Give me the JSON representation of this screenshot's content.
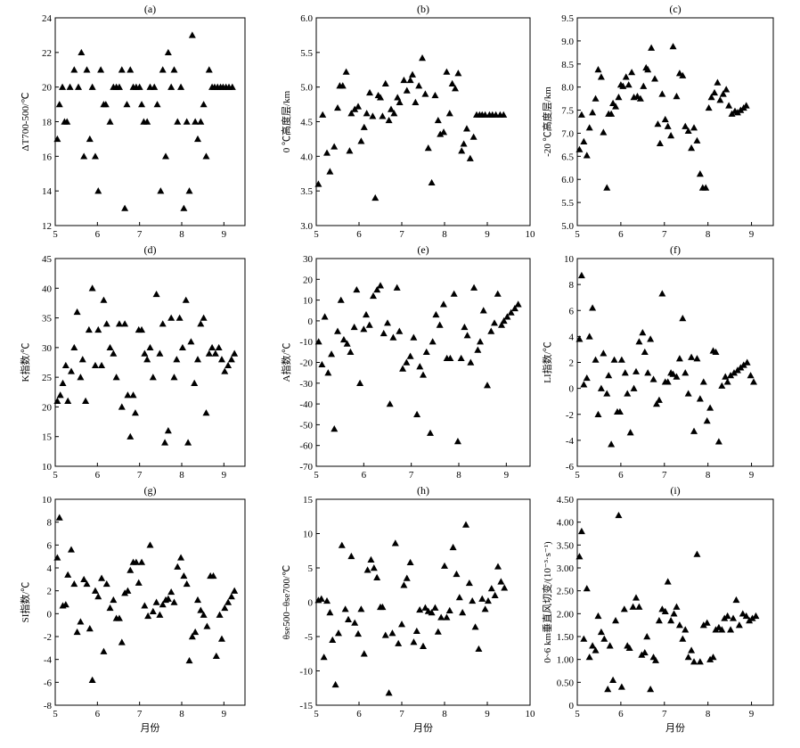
{
  "chart_data": [
    {
      "type": "scatter",
      "title": "(a)",
      "ylabel": "ΔT700-500/℃",
      "xlabel": "",
      "xlim": [
        5,
        9.5
      ],
      "ylim": [
        12,
        24
      ],
      "xticks": [
        5,
        6,
        7,
        8,
        9
      ],
      "yticks": [
        12,
        14,
        16,
        18,
        20,
        22,
        24
      ],
      "x": [
        5.05,
        5.1,
        5.17,
        5.22,
        5.28,
        5.35,
        5.45,
        5.55,
        5.62,
        5.68,
        5.75,
        5.82,
        5.88,
        5.95,
        6.02,
        6.08,
        6.15,
        6.2,
        6.3,
        6.38,
        6.45,
        6.52,
        6.58,
        6.65,
        6.7,
        6.78,
        6.85,
        6.92,
        7.0,
        7.05,
        7.1,
        7.18,
        7.25,
        7.35,
        7.42,
        7.5,
        7.55,
        7.62,
        7.68,
        7.75,
        7.82,
        7.9,
        7.98,
        8.05,
        8.12,
        8.18,
        8.25,
        8.32,
        8.38,
        8.45,
        8.52,
        8.58,
        8.65,
        8.72,
        8.78,
        8.85,
        8.92,
        8.98,
        9.05,
        9.12,
        9.2
      ],
      "y": [
        17,
        19,
        20,
        18,
        18,
        20,
        21,
        20,
        22,
        16,
        21,
        17,
        20,
        16,
        14,
        21,
        19,
        19,
        18,
        20,
        20,
        20,
        21,
        13,
        19,
        21,
        20,
        20,
        20,
        19,
        18,
        18,
        20,
        20,
        19,
        14,
        21,
        16,
        22,
        20,
        21,
        18,
        20,
        13,
        18,
        14,
        23,
        18,
        17,
        18,
        19,
        16,
        21,
        20,
        20,
        20,
        20,
        20,
        20,
        20,
        20
      ]
    },
    {
      "type": "scatter",
      "title": "(b)",
      "ylabel": "0 ℃高度层/km",
      "xlabel": "",
      "xlim": [
        5,
        10
      ],
      "ylim": [
        3.0,
        6.0
      ],
      "xticks": [
        5,
        6,
        7,
        8,
        9,
        10
      ],
      "yticks": [
        3.0,
        3.5,
        4.0,
        4.5,
        5.0,
        5.5,
        6.0
      ],
      "x": [
        5.05,
        5.15,
        5.25,
        5.32,
        5.42,
        5.5,
        5.55,
        5.62,
        5.7,
        5.78,
        5.82,
        5.9,
        5.98,
        6.05,
        6.12,
        6.18,
        6.25,
        6.32,
        6.38,
        6.45,
        6.5,
        6.55,
        6.62,
        6.7,
        6.75,
        6.82,
        6.9,
        6.95,
        7.05,
        7.12,
        7.2,
        7.25,
        7.32,
        7.4,
        7.48,
        7.55,
        7.62,
        7.7,
        7.78,
        7.85,
        7.9,
        7.98,
        8.05,
        8.12,
        8.18,
        8.25,
        8.32,
        8.4,
        8.45,
        8.52,
        8.6,
        8.68,
        8.75,
        8.82,
        8.88,
        8.95,
        9.05,
        9.12,
        9.2,
        9.3,
        9.38
      ],
      "y": [
        3.6,
        4.6,
        4.05,
        3.78,
        4.14,
        4.7,
        5.02,
        5.02,
        5.22,
        4.08,
        4.62,
        4.68,
        4.72,
        4.22,
        4.42,
        4.62,
        4.92,
        4.58,
        3.4,
        4.88,
        4.85,
        4.58,
        5.05,
        4.52,
        4.68,
        4.62,
        4.85,
        4.78,
        5.1,
        4.95,
        5.1,
        5.18,
        4.78,
        5.02,
        5.42,
        4.9,
        4.12,
        3.62,
        4.88,
        4.52,
        4.32,
        4.35,
        5.22,
        4.62,
        5.05,
        4.98,
        5.2,
        4.08,
        4.18,
        4.4,
        3.97,
        4.28,
        4.6,
        4.6,
        4.6,
        4.6,
        4.6,
        4.6,
        4.6,
        4.6,
        4.6
      ]
    },
    {
      "type": "scatter",
      "title": "(c)",
      "ylabel": "-20 ℃高度层/km",
      "xlabel": "",
      "xlim": [
        5,
        9.5
      ],
      "ylim": [
        5.0,
        9.5
      ],
      "xticks": [
        5,
        6,
        7,
        8,
        9
      ],
      "yticks": [
        5.0,
        5.5,
        6.0,
        6.5,
        7.0,
        7.5,
        8.0,
        8.5,
        9.0,
        9.5
      ],
      "x": [
        5.05,
        5.1,
        5.15,
        5.22,
        5.28,
        5.35,
        5.42,
        5.48,
        5.55,
        5.6,
        5.68,
        5.72,
        5.78,
        5.82,
        5.88,
        5.95,
        6.0,
        6.05,
        6.12,
        6.18,
        6.25,
        6.3,
        6.38,
        6.45,
        6.52,
        6.58,
        6.62,
        6.7,
        6.78,
        6.85,
        6.9,
        6.95,
        7.02,
        7.08,
        7.15,
        7.2,
        7.28,
        7.35,
        7.42,
        7.48,
        7.55,
        7.62,
        7.68,
        7.75,
        7.82,
        7.88,
        7.95,
        8.02,
        8.08,
        8.15,
        8.22,
        8.28,
        8.35,
        8.42,
        8.48,
        8.55,
        8.62,
        8.68,
        8.75,
        8.82,
        8.88
      ],
      "y": [
        6.65,
        7.4,
        6.82,
        6.52,
        7.12,
        7.45,
        7.75,
        8.38,
        8.22,
        7.02,
        5.82,
        7.42,
        7.42,
        7.65,
        7.58,
        7.78,
        8.05,
        8.02,
        8.22,
        8.05,
        8.32,
        7.78,
        7.8,
        7.75,
        8.02,
        8.42,
        8.38,
        8.85,
        8.18,
        7.2,
        6.78,
        7.85,
        7.3,
        7.15,
        6.95,
        8.88,
        7.8,
        8.3,
        8.25,
        7.15,
        7.05,
        6.68,
        7.12,
        6.84,
        6.12,
        5.82,
        5.82,
        7.55,
        7.78,
        7.88,
        8.1,
        7.72,
        7.85,
        7.95,
        7.6,
        7.42,
        7.48,
        7.45,
        7.5,
        7.55,
        7.6
      ]
    },
    {
      "type": "scatter",
      "title": "(d)",
      "ylabel": "K指数/℃",
      "xlabel": "",
      "xlim": [
        5,
        9.5
      ],
      "ylim": [
        10,
        45
      ],
      "xticks": [
        5,
        6,
        7,
        8,
        9
      ],
      "yticks": [
        10,
        15,
        20,
        25,
        30,
        35,
        40,
        45
      ],
      "x": [
        5.05,
        5.12,
        5.18,
        5.25,
        5.3,
        5.38,
        5.45,
        5.52,
        5.6,
        5.65,
        5.72,
        5.8,
        5.88,
        5.95,
        6.02,
        6.1,
        6.15,
        6.22,
        6.3,
        6.38,
        6.45,
        6.52,
        6.58,
        6.65,
        6.72,
        6.78,
        6.85,
        6.9,
        6.98,
        7.05,
        7.12,
        7.18,
        7.25,
        7.32,
        7.4,
        7.48,
        7.55,
        7.6,
        7.68,
        7.75,
        7.82,
        7.88,
        7.95,
        8.02,
        8.1,
        8.15,
        8.22,
        8.3,
        8.38,
        8.45,
        8.52,
        8.58,
        8.65,
        8.72,
        8.8,
        8.88,
        8.95,
        9.02,
        9.1,
        9.18,
        9.25
      ],
      "y": [
        21,
        22,
        24,
        27,
        21,
        26,
        30,
        36,
        25,
        28,
        21,
        33,
        40,
        27,
        33,
        27,
        38,
        34,
        30,
        29,
        25,
        34,
        20,
        34,
        22,
        15,
        22,
        19,
        33,
        33,
        29,
        28,
        30,
        25,
        39,
        29,
        34,
        14,
        16,
        35,
        25,
        28,
        35,
        30,
        38,
        14,
        31,
        24,
        28,
        34,
        35,
        19,
        29,
        30,
        29,
        30,
        28,
        26,
        27,
        28,
        29
      ]
    },
    {
      "type": "scatter",
      "title": "(e)",
      "ylabel": "A指数/℃",
      "xlabel": "",
      "xlim": [
        5,
        9.5
      ],
      "ylim": [
        -70,
        30
      ],
      "xticks": [
        5,
        6,
        7,
        8,
        9
      ],
      "yticks": [
        -70,
        -60,
        -50,
        -40,
        -30,
        -20,
        -10,
        0,
        10,
        20,
        30
      ],
      "x": [
        5.05,
        5.12,
        5.18,
        5.25,
        5.32,
        5.38,
        5.45,
        5.52,
        5.58,
        5.65,
        5.72,
        5.8,
        5.85,
        5.92,
        6.0,
        6.05,
        6.12,
        6.2,
        6.28,
        6.35,
        6.42,
        6.5,
        6.55,
        6.62,
        6.7,
        6.75,
        6.82,
        6.9,
        6.98,
        7.05,
        7.12,
        7.18,
        7.25,
        7.32,
        7.4,
        7.45,
        7.52,
        7.6,
        7.68,
        7.75,
        7.82,
        7.9,
        7.98,
        8.05,
        8.12,
        8.18,
        8.25,
        8.32,
        8.4,
        8.45,
        8.52,
        8.6,
        8.68,
        8.75,
        8.82,
        8.9,
        8.95,
        9.02,
        9.1,
        9.18,
        9.25
      ],
      "y": [
        -10,
        -21,
        2,
        -25,
        -16,
        -52,
        -5,
        10,
        -9,
        -11,
        -15,
        -3,
        15,
        -30,
        -4,
        3,
        -2,
        12,
        15,
        17,
        -6,
        -1,
        -40,
        -8,
        16,
        -5,
        -23,
        -20,
        -17,
        -8,
        -45,
        -22,
        -26,
        -15,
        -54,
        -10,
        3,
        -2,
        8,
        -18,
        -18,
        13,
        -58,
        -18,
        -3,
        -7,
        -20,
        16,
        -14,
        -10,
        5,
        -31,
        -5,
        -1,
        13,
        -2,
        0,
        2,
        4,
        6,
        8
      ]
    },
    {
      "type": "scatter",
      "title": "(f)",
      "ylabel": "LI指数/℃",
      "xlabel": "",
      "xlim": [
        5,
        9.5
      ],
      "ylim": [
        -6,
        10
      ],
      "xticks": [
        5,
        6,
        7,
        8,
        9
      ],
      "yticks": [
        -6,
        -4,
        -2,
        0,
        2,
        4,
        6,
        8,
        10
      ],
      "x": [
        5.05,
        5.1,
        5.15,
        5.22,
        5.28,
        5.35,
        5.42,
        5.48,
        5.55,
        5.6,
        5.68,
        5.72,
        5.78,
        5.85,
        5.92,
        5.98,
        6.02,
        6.1,
        6.15,
        6.22,
        6.3,
        6.35,
        6.42,
        6.5,
        6.55,
        6.62,
        6.68,
        6.75,
        6.82,
        6.88,
        6.95,
        7.02,
        7.08,
        7.15,
        7.2,
        7.28,
        7.35,
        7.42,
        7.48,
        7.55,
        7.62,
        7.68,
        7.75,
        7.82,
        7.9,
        7.98,
        8.05,
        8.12,
        8.18,
        8.25,
        8.32,
        8.4,
        8.45,
        8.52,
        8.6,
        8.68,
        8.75,
        8.82,
        8.9,
        8.98,
        9.05
      ],
      "y": [
        3.8,
        8.7,
        0.3,
        0.8,
        4.0,
        6.2,
        2.2,
        -2.0,
        0.0,
        2.7,
        -0.4,
        1.0,
        -4.3,
        2.2,
        -1.8,
        -1.8,
        2.2,
        1.2,
        -0.4,
        -3.4,
        0.0,
        1.3,
        3.6,
        4.3,
        2.8,
        1.2,
        3.8,
        0.7,
        -1.2,
        -0.9,
        7.3,
        0.5,
        0.5,
        1.2,
        1.1,
        0.9,
        2.3,
        5.4,
        1.2,
        -0.4,
        2.4,
        -3.3,
        2.3,
        -0.8,
        0.5,
        -2.5,
        -1.5,
        2.9,
        2.8,
        -4.1,
        0.2,
        0.9,
        0.5,
        1.0,
        1.2,
        1.4,
        1.6,
        1.8,
        2.0,
        1.0,
        0.5
      ]
    },
    {
      "type": "scatter",
      "title": "(g)",
      "ylabel": "SI指数/℃",
      "xlabel": "月份",
      "xlim": [
        5,
        9.5
      ],
      "ylim": [
        -8,
        10
      ],
      "xticks": [
        5,
        6,
        7,
        8,
        9
      ],
      "yticks": [
        -8,
        -6,
        -4,
        -2,
        0,
        2,
        4,
        6,
        8,
        10
      ],
      "x": [
        5.05,
        5.1,
        5.18,
        5.25,
        5.3,
        5.38,
        5.45,
        5.52,
        5.6,
        5.68,
        5.75,
        5.82,
        5.88,
        5.95,
        6.02,
        6.1,
        6.15,
        6.22,
        6.3,
        6.38,
        6.45,
        6.52,
        6.58,
        6.65,
        6.72,
        6.78,
        6.85,
        6.92,
        6.98,
        7.05,
        7.12,
        7.2,
        7.25,
        7.32,
        7.4,
        7.48,
        7.55,
        7.62,
        7.68,
        7.75,
        7.82,
        7.9,
        7.98,
        8.05,
        8.12,
        8.18,
        8.25,
        8.32,
        8.38,
        8.45,
        8.52,
        8.6,
        8.68,
        8.75,
        8.82,
        8.9,
        8.95,
        9.02,
        9.1,
        9.18,
        9.25
      ],
      "y": [
        4.9,
        8.4,
        0.7,
        0.8,
        3.4,
        5.6,
        2.6,
        -1.6,
        -0.7,
        3.0,
        2.6,
        -1.3,
        -5.8,
        2.0,
        1.5,
        3.1,
        -3.3,
        2.6,
        0.5,
        1.2,
        -0.4,
        -0.4,
        -2.5,
        1.8,
        2.0,
        3.8,
        4.5,
        4.5,
        2.7,
        4.5,
        0.7,
        -0.2,
        6.0,
        0.2,
        1.0,
        -0.1,
        0.8,
        1.2,
        1.3,
        1.9,
        1.0,
        4.1,
        4.9,
        3.3,
        2.6,
        -4.1,
        -2.0,
        -1.6,
        1.2,
        0.3,
        -0.1,
        -1.1,
        3.3,
        3.3,
        -3.7,
        -0.1,
        -2.2,
        0.5,
        1.0,
        1.5,
        2.0
      ]
    },
    {
      "type": "scatter",
      "title": "(h)",
      "ylabel": "θse500−θse700/℃",
      "xlabel": "月份",
      "xlim": [
        5,
        10
      ],
      "ylim": [
        -15,
        15
      ],
      "xticks": [
        5,
        6,
        7,
        8,
        9,
        10
      ],
      "yticks": [
        -15,
        -10,
        -5,
        0,
        5,
        10,
        15
      ],
      "x": [
        5.05,
        5.12,
        5.18,
        5.25,
        5.32,
        5.38,
        5.45,
        5.52,
        5.6,
        5.68,
        5.75,
        5.82,
        5.9,
        5.98,
        6.05,
        6.12,
        6.2,
        6.28,
        6.35,
        6.42,
        6.5,
        6.55,
        6.62,
        6.7,
        6.78,
        6.85,
        6.92,
        7.0,
        7.05,
        7.12,
        7.2,
        7.28,
        7.35,
        7.42,
        7.5,
        7.55,
        7.62,
        7.7,
        7.78,
        7.85,
        7.92,
        8.0,
        8.05,
        8.12,
        8.2,
        8.28,
        8.35,
        8.42,
        8.5,
        8.58,
        8.65,
        8.72,
        8.8,
        8.88,
        8.95,
        9.02,
        9.1,
        9.18,
        9.25,
        9.32,
        9.4
      ],
      "y": [
        0.3,
        0.5,
        -8.0,
        0.2,
        -1.5,
        -5.5,
        -12.0,
        -4.5,
        8.3,
        -1.0,
        -2.5,
        6.7,
        -3.0,
        -4.6,
        -1.0,
        -7.5,
        4.7,
        6.2,
        5.0,
        3.6,
        -0.7,
        -0.7,
        -4.8,
        -13.2,
        -4.5,
        8.6,
        -6.0,
        -3.2,
        2.5,
        3.5,
        5.8,
        -5.8,
        -4.2,
        -1.1,
        -6.4,
        -0.8,
        -1.3,
        -1.5,
        -0.8,
        -4.3,
        -2.2,
        5.3,
        -2.2,
        -1.2,
        8.0,
        4.1,
        0.7,
        -1.5,
        11.3,
        2.8,
        0.2,
        -3.6,
        -6.8,
        0.5,
        -1.0,
        0.2,
        2.0,
        1.0,
        5.2,
        3.0,
        2.1
      ]
    },
    {
      "type": "scatter",
      "title": "(i)",
      "ylabel": "0~6 km垂直风切变/(10⁻³·s⁻¹)",
      "xlabel": "月份",
      "xlim": [
        5,
        9.5
      ],
      "ylim": [
        0,
        4.5
      ],
      "xticks": [
        5,
        6,
        7,
        8,
        9
      ],
      "yticks": [
        0,
        0.5,
        1.0,
        1.5,
        2.0,
        2.5,
        3.0,
        3.5,
        4.0,
        4.5
      ],
      "ytick_labels": [
        "0",
        "0.50",
        "1.00",
        "1.50",
        "2.00",
        "2.50",
        "3.00",
        "3.50",
        "4.00",
        "4.50"
      ],
      "x": [
        5.05,
        5.1,
        5.15,
        5.22,
        5.28,
        5.35,
        5.42,
        5.48,
        5.55,
        5.62,
        5.7,
        5.75,
        5.82,
        5.88,
        5.95,
        6.02,
        6.08,
        6.15,
        6.2,
        6.28,
        6.35,
        6.42,
        6.48,
        6.55,
        6.6,
        6.68,
        6.75,
        6.8,
        6.88,
        6.95,
        7.02,
        7.08,
        7.15,
        7.22,
        7.28,
        7.35,
        7.42,
        7.48,
        7.55,
        7.62,
        7.68,
        7.75,
        7.82,
        7.9,
        7.98,
        8.05,
        8.12,
        8.18,
        8.25,
        8.32,
        8.38,
        8.45,
        8.52,
        8.58,
        8.65,
        8.72,
        8.8,
        8.88,
        8.95,
        9.02,
        9.1
      ],
      "y": [
        3.25,
        3.8,
        1.45,
        2.55,
        1.05,
        1.3,
        1.2,
        1.95,
        1.6,
        1.45,
        0.35,
        1.3,
        0.55,
        1.85,
        4.15,
        0.4,
        2.1,
        1.3,
        1.25,
        2.15,
        2.35,
        2.15,
        1.1,
        1.15,
        1.5,
        0.35,
        1.05,
        0.98,
        1.85,
        2.1,
        2.05,
        2.7,
        1.85,
        2.0,
        2.15,
        1.75,
        1.45,
        1.65,
        1.05,
        1.2,
        0.95,
        3.3,
        0.95,
        1.75,
        1.8,
        1.0,
        1.05,
        1.65,
        1.7,
        1.65,
        1.9,
        1.95,
        1.65,
        1.9,
        2.3,
        1.75,
        2.0,
        1.95,
        1.85,
        1.9,
        1.95
      ]
    }
  ]
}
